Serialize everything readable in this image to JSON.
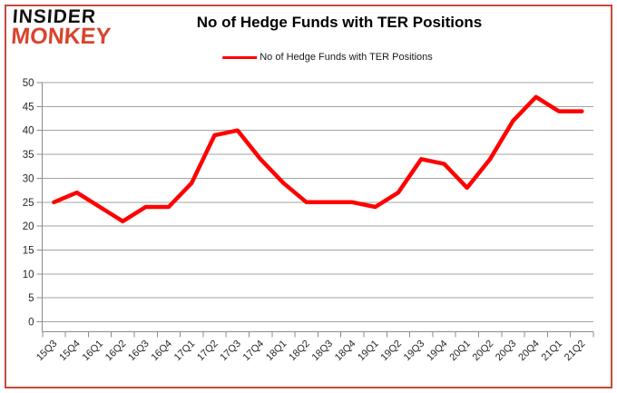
{
  "logo": {
    "line1": "INSIDER",
    "line2": "MONKEY"
  },
  "header": {
    "title": "No of Hedge Funds with TER Positions"
  },
  "legend": {
    "label": "No of Hedge Funds with TER Positions",
    "color": "#FF0000"
  },
  "chart_data": {
    "type": "line",
    "title": "No of Hedge Funds with TER Positions",
    "categories": [
      "15Q3",
      "15Q4",
      "16Q1",
      "16Q2",
      "16Q3",
      "16Q4",
      "17Q1",
      "17Q2",
      "17Q3",
      "17Q4",
      "18Q1",
      "18Q2",
      "18Q3",
      "18Q4",
      "19Q1",
      "19Q2",
      "19Q3",
      "19Q4",
      "20Q1",
      "20Q2",
      "20Q3",
      "20Q4",
      "21Q1",
      "21Q2"
    ],
    "series": [
      {
        "name": "No of Hedge Funds with TER Positions",
        "values": [
          25,
          27,
          24,
          21,
          24,
          24,
          29,
          39,
          40,
          34,
          29,
          25,
          25,
          25,
          24,
          27,
          34,
          33,
          28,
          34,
          42,
          47,
          44,
          44
        ]
      }
    ],
    "xlabel": "",
    "ylabel": "",
    "ylim": [
      0,
      50
    ],
    "ytick_step": 5,
    "grid": "horizontal",
    "legend_position": "top-center",
    "colors": {
      "line": "#FF0000",
      "gridline": "#A3A3A3",
      "axis": "#8C8C8C",
      "tick_label": "#262626",
      "frame_border": "#C64A3C"
    }
  }
}
